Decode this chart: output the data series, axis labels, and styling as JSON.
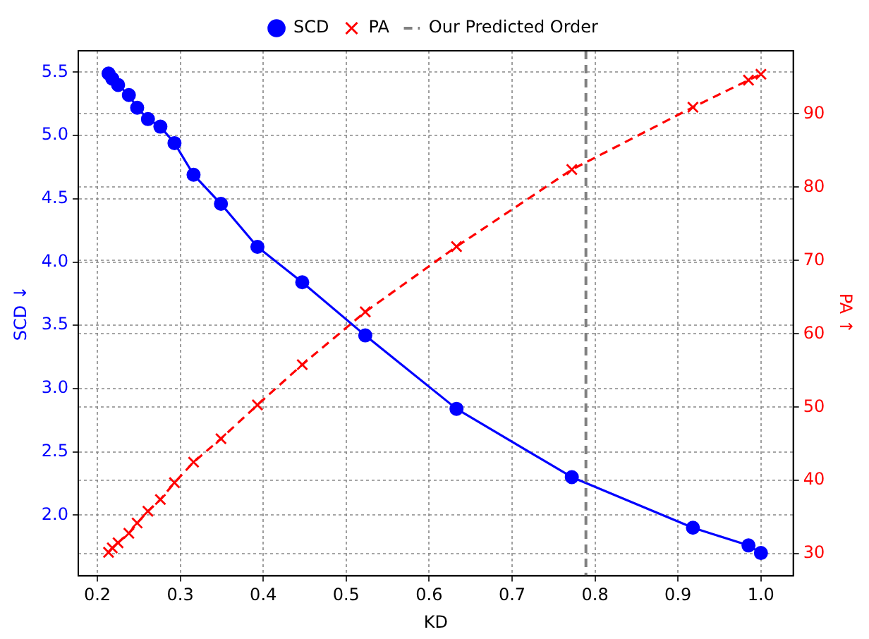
{
  "chart_data": {
    "type": "line",
    "xlabel": "KD",
    "ylabel": "SCD ↓",
    "y2label": "PA ↑",
    "x": [
      0.2135,
      0.218,
      0.225,
      0.238,
      0.248,
      0.261,
      0.276,
      0.293,
      0.316,
      0.349,
      0.393,
      0.447,
      0.523,
      0.633,
      0.772,
      0.918,
      0.985,
      1.0
    ],
    "series": [
      {
        "name": "SCD",
        "color": "#0000ff",
        "marker": "circle",
        "line_style": "solid",
        "values": [
          5.49,
          5.45,
          5.4,
          5.32,
          5.22,
          5.13,
          5.07,
          4.94,
          4.69,
          4.46,
          4.12,
          3.84,
          3.42,
          2.84,
          2.3,
          1.9,
          1.76,
          1.7
        ]
      },
      {
        "name": "PA",
        "color": "#ff0000",
        "marker": "cross",
        "line_style": "dashed",
        "axis": "y2",
        "values": [
          30.2,
          30.8,
          31.5,
          32.8,
          34.2,
          35.8,
          37.4,
          39.7,
          42.5,
          45.7,
          50.3,
          55.8,
          63.0,
          71.9,
          82.4,
          90.9,
          94.6,
          95.4
        ]
      }
    ],
    "xlim": [
      0.177,
      1.039
    ],
    "xticks": [
      0.2,
      0.3,
      0.4,
      0.5,
      0.6,
      0.7,
      0.8,
      0.9,
      {
        "value": 1,
        "label": "1.0"
      }
    ],
    "ylim": [
      1.52,
      5.67
    ],
    "yticks": [
      {
        "value": 2,
        "label": "2.0"
      },
      2.5,
      {
        "value": 3,
        "label": "3.0"
      },
      3.5,
      {
        "value": 4,
        "label": "4.0"
      },
      4.5,
      {
        "value": 5,
        "label": "5.0"
      },
      5.5
    ],
    "y2lim": [
      27.0,
      98.6
    ],
    "y2ticks": [
      30,
      40,
      50,
      60,
      70,
      80,
      90
    ],
    "ref_lines": [
      {
        "axis": "x",
        "value": 0.789,
        "label": "Our Predicted Order",
        "color": "#808080",
        "line_style": "dashed"
      }
    ],
    "grid": true,
    "legend": "top"
  }
}
